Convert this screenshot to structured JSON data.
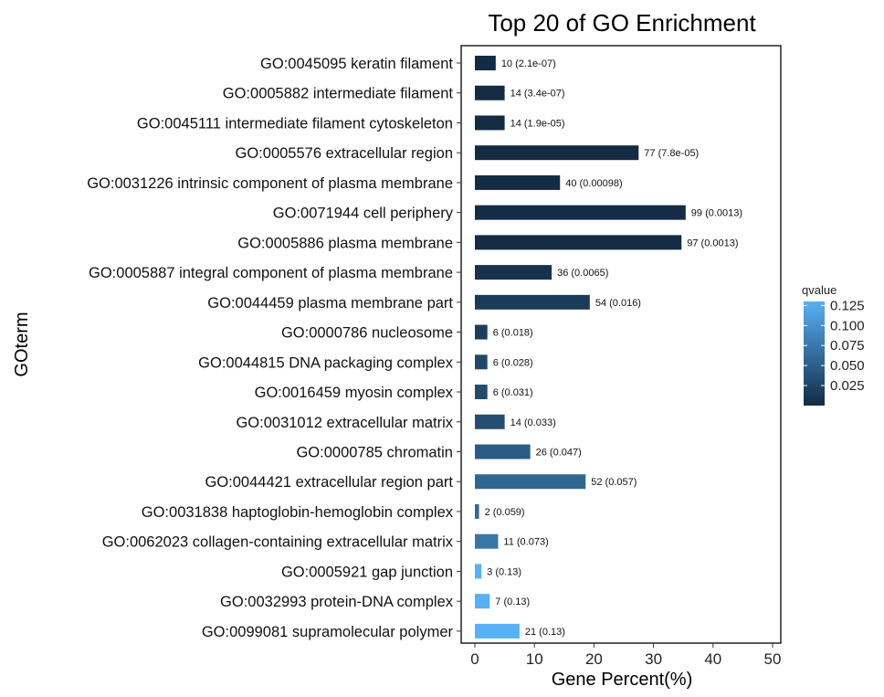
{
  "chart_data": {
    "type": "bar",
    "orientation": "horizontal",
    "title": "Top 20 of GO Enrichment",
    "xlabel": "Gene Percent(%)",
    "ylabel": "GOterm",
    "xlim": [
      0,
      51
    ],
    "xticks": [
      0,
      10,
      20,
      30,
      40,
      50
    ],
    "grid": false,
    "legend": {
      "title": "qvalue",
      "position": "right",
      "ticks": [
        "0.125",
        "0.100",
        "0.075",
        "0.050",
        "0.025"
      ],
      "tick_values": [
        0.125,
        0.1,
        0.075,
        0.05,
        0.025
      ],
      "range": [
        0.0,
        0.13
      ],
      "color_low": "#132b43",
      "color_high": "#56b1f7"
    },
    "categories": [
      "GO:0045095 keratin filament",
      "GO:0005882 intermediate filament",
      "GO:0045111 intermediate filament cytoskeleton",
      "GO:0005576 extracellular region",
      "GO:0031226 intrinsic component of plasma membrane",
      "GO:0071944 cell periphery",
      "GO:0005886 plasma membrane",
      "GO:0005887 integral component of plasma membrane",
      "GO:0044459 plasma membrane part",
      "GO:0000786 nucleosome",
      "GO:0044815 DNA packaging complex",
      "GO:0016459 myosin complex",
      "GO:0031012 extracellular matrix",
      "GO:0000785 chromatin",
      "GO:0044421 extracellular region part",
      "GO:0031838 haptoglobin-hemoglobin complex",
      "GO:0062023 collagen-containing extracellular matrix",
      "GO:0005921 gap junction",
      "GO:0032993 protein-DNA complex",
      "GO:0099081 supramolecular polymer"
    ],
    "values": [
      3.5,
      5.0,
      5.0,
      27.5,
      14.3,
      35.4,
      34.7,
      12.9,
      19.3,
      2.1,
      2.1,
      2.1,
      5.0,
      9.3,
      18.6,
      0.7,
      3.9,
      1.1,
      2.5,
      7.5
    ],
    "qvalues": [
      2.1e-07,
      3.4e-07,
      1.9e-05,
      7.8e-05,
      0.00098,
      0.0013,
      0.0013,
      0.0065,
      0.016,
      0.018,
      0.028,
      0.031,
      0.033,
      0.047,
      0.057,
      0.059,
      0.073,
      0.13,
      0.13,
      0.13
    ],
    "bar_labels": [
      "10 (2.1e-07)",
      "14 (3.4e-07)",
      "14 (1.9e-05)",
      "77 (7.8e-05)",
      "40 (0.00098)",
      "99 (0.0013)",
      "97 (0.0013)",
      "36 (0.0065)",
      "54 (0.016)",
      "6 (0.018)",
      "6 (0.028)",
      "6 (0.031)",
      "14 (0.033)",
      "26 (0.047)",
      "52 (0.057)",
      "2 (0.059)",
      "11 (0.073)",
      "3 (0.13)",
      "7 (0.13)",
      "21 (0.13)"
    ]
  }
}
